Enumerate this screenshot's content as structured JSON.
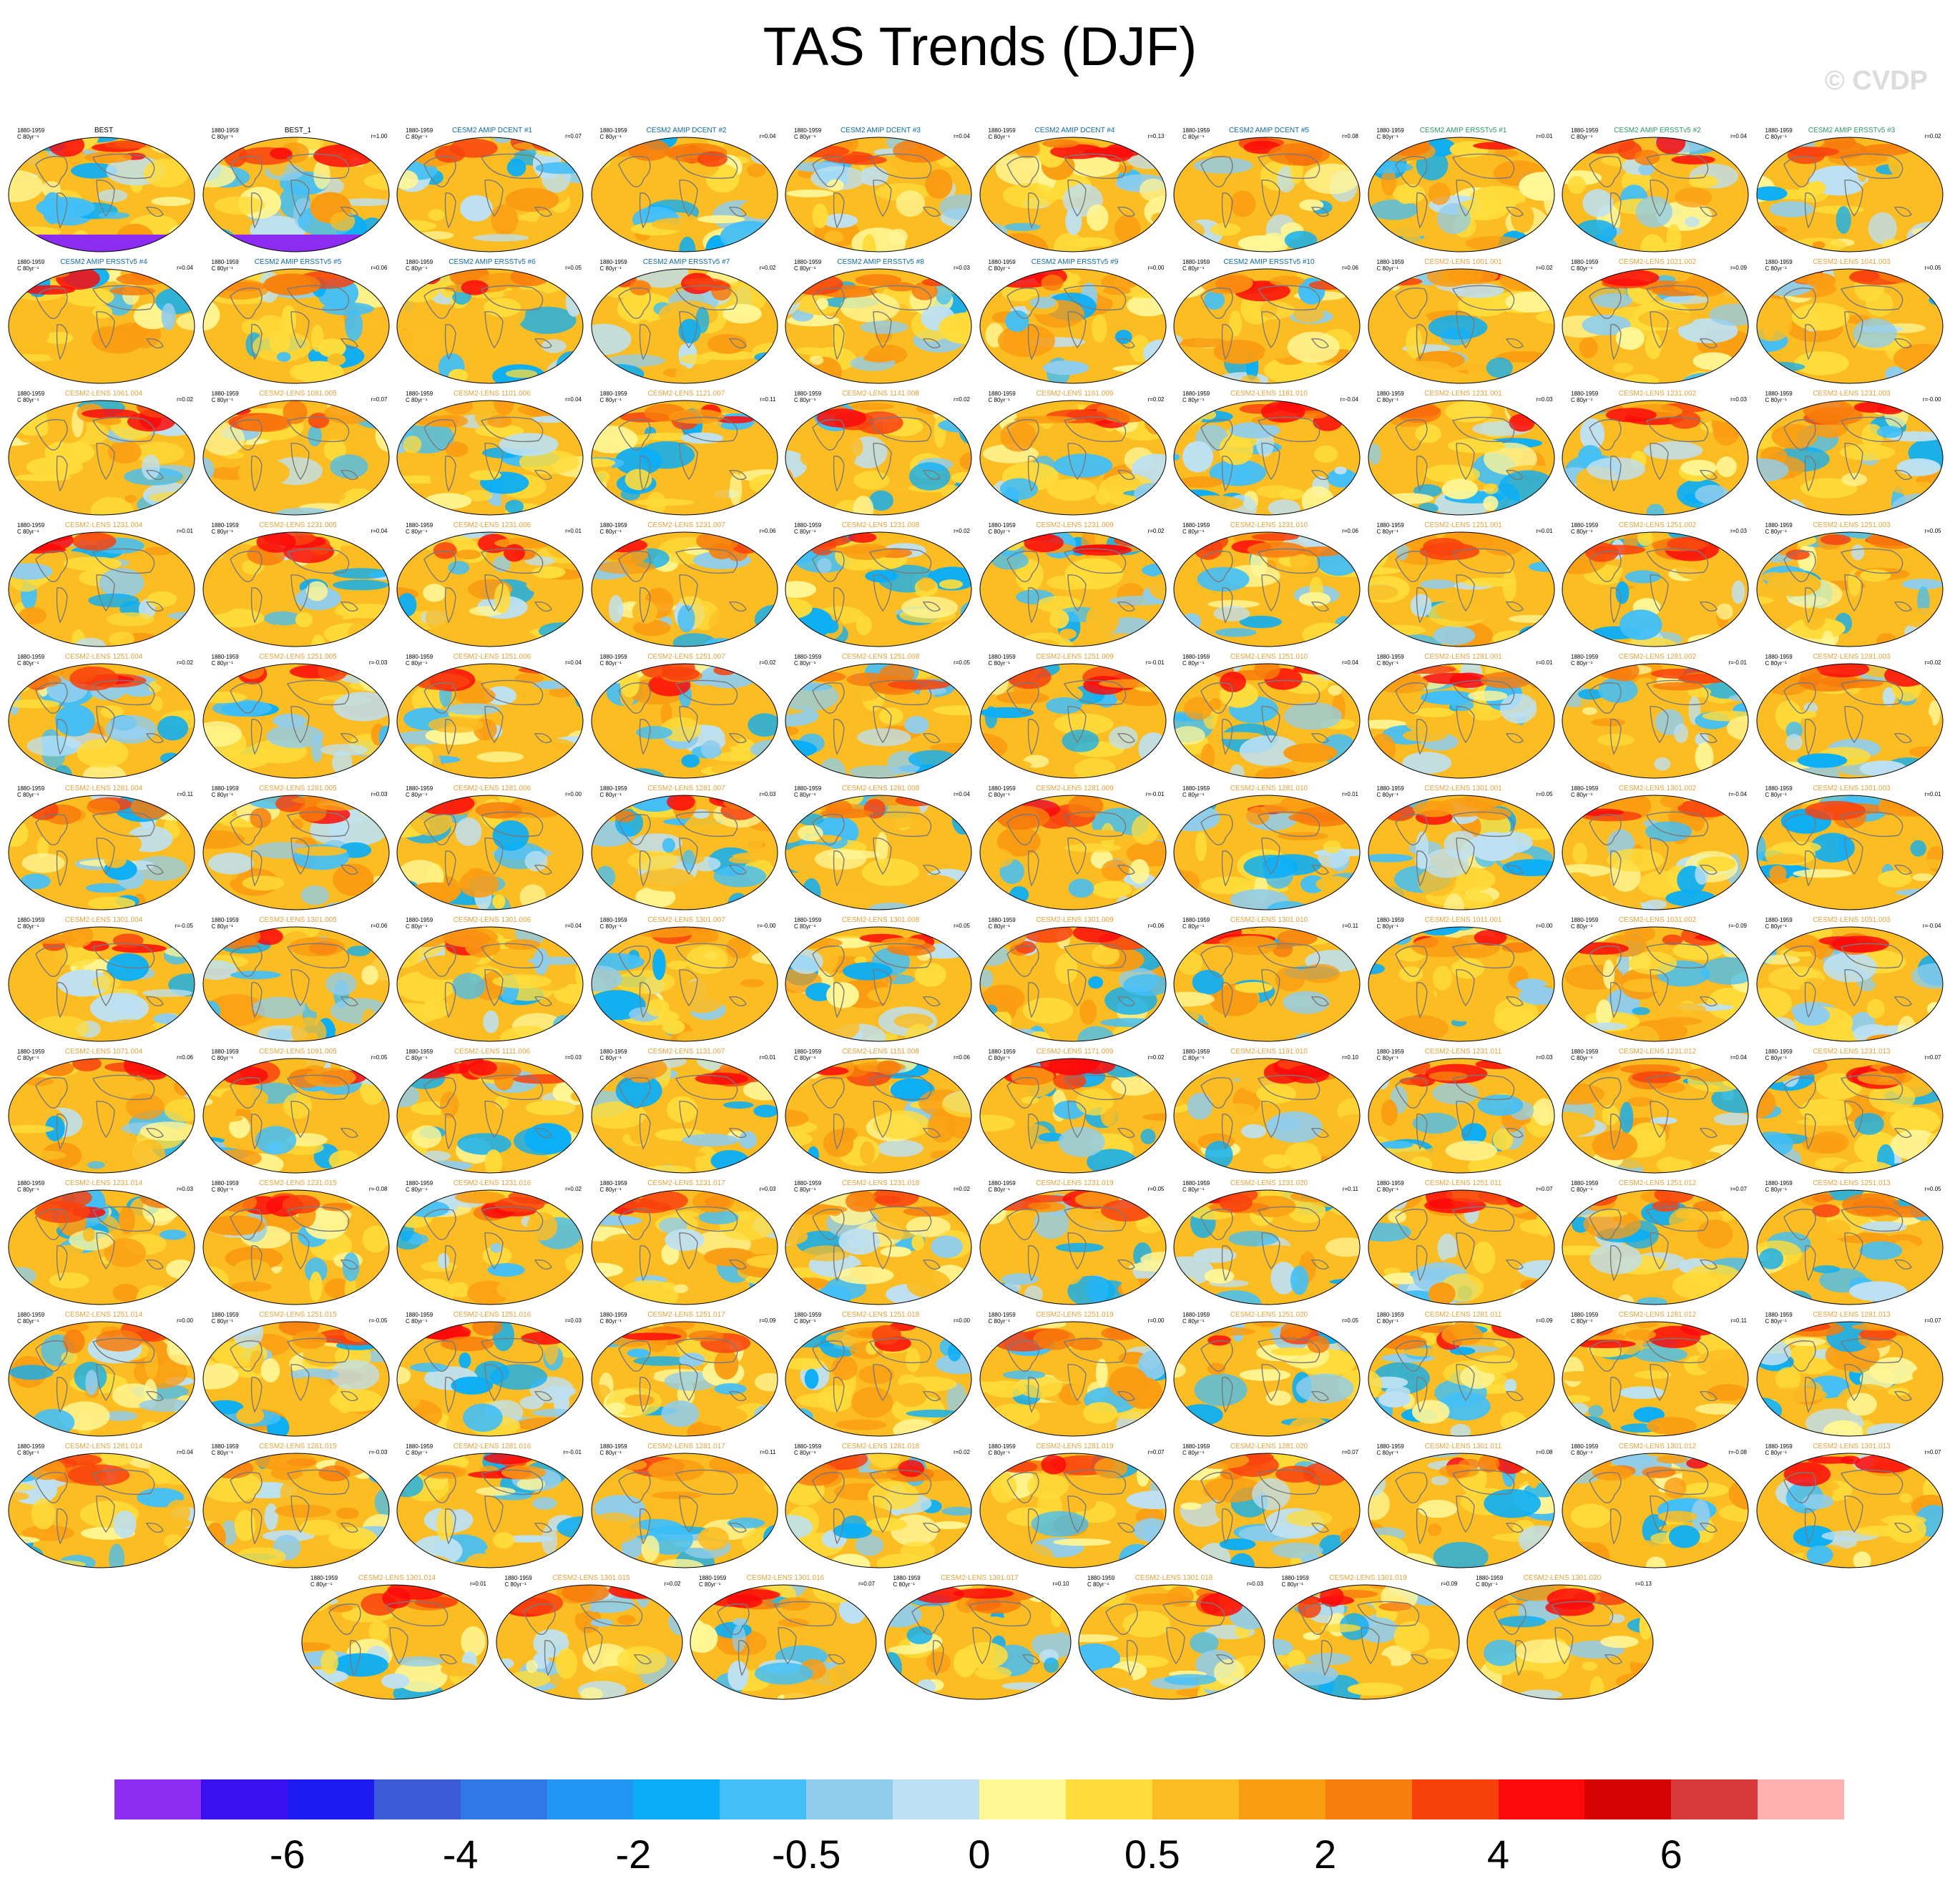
{
  "title": "TAS Trends (DJF)",
  "credit": "© CVDP",
  "chart_data": {
    "type": "heatmap",
    "title": "TAS Trends (DJF)",
    "period": "1880-1959",
    "units": "C 80yr⁻¹",
    "panels": [
      {
        "label": "BEST",
        "r": "",
        "group": "obs"
      },
      {
        "label": "BEST_1",
        "r": "r=1.00",
        "group": "obs"
      },
      {
        "label": "CESM2 AMIP DCENT #1",
        "r": "r=0.07",
        "group": "dcent"
      },
      {
        "label": "CESM2 AMIP DCENT #2",
        "r": "r=0.04",
        "group": "dcent"
      },
      {
        "label": "CESM2 AMIP DCENT #3",
        "r": "r=0.04",
        "group": "dcent"
      },
      {
        "label": "CESM2 AMIP DCENT #4",
        "r": "r=0.13",
        "group": "dcent"
      },
      {
        "label": "CESM2 AMIP DCENT #5",
        "r": "r=0.08",
        "group": "dcent"
      },
      {
        "label": "CESM2 AMIP ERSSTv5 #1",
        "r": "r=0.01",
        "group": "ersst"
      },
      {
        "label": "CESM2 AMIP ERSSTv5 #2",
        "r": "r=0.04",
        "group": "ersst"
      },
      {
        "label": "CESM2 AMIP ERSSTv5 #3",
        "r": "r=0.02",
        "group": "ersst"
      },
      {
        "label": "CESM2 AMIP ERSSTv5 #4",
        "r": "r=0.04",
        "group": "ersst2"
      },
      {
        "label": "CESM2 AMIP ERSSTv5 #5",
        "r": "r=0.06",
        "group": "ersst2"
      },
      {
        "label": "CESM2 AMIP ERSSTv5 #6",
        "r": "r=0.05",
        "group": "ersst2"
      },
      {
        "label": "CESM2 AMIP ERSSTv5 #7",
        "r": "r=0.02",
        "group": "ersst2"
      },
      {
        "label": "CESM2 AMIP ERSSTv5 #8",
        "r": "r=0.03",
        "group": "ersst2"
      },
      {
        "label": "CESM2 AMIP ERSSTv5 #9",
        "r": "r=0.00",
        "group": "ersst2"
      },
      {
        "label": "CESM2 AMIP ERSSTv5 #10",
        "r": "r=0.06",
        "group": "ersst2"
      },
      {
        "label": "CESM2-LENS 1001.001",
        "r": "r=0.02",
        "group": "lens"
      },
      {
        "label": "CESM2-LENS 1021.002",
        "r": "r=0.09",
        "group": "lens"
      },
      {
        "label": "CESM2-LENS 1041.003",
        "r": "r=0.05",
        "group": "lens"
      },
      {
        "label": "CESM2-LENS 1061.004",
        "r": "r=0.02",
        "group": "lens"
      },
      {
        "label": "CESM2-LENS 1081.005",
        "r": "r=0.07",
        "group": "lens"
      },
      {
        "label": "CESM2-LENS 1101.006",
        "r": "r=0.04",
        "group": "lens"
      },
      {
        "label": "CESM2-LENS 1121.007",
        "r": "r=0.11",
        "group": "lens"
      },
      {
        "label": "CESM2-LENS 1141.008",
        "r": "r=0.02",
        "group": "lens"
      },
      {
        "label": "CESM2-LENS 1161.009",
        "r": "r=0.02",
        "group": "lens"
      },
      {
        "label": "CESM2-LENS 1181.010",
        "r": "r=-0.04",
        "group": "lens"
      },
      {
        "label": "CESM2-LENS 1231.001",
        "r": "r=0.03",
        "group": "lens"
      },
      {
        "label": "CESM2-LENS 1231.002",
        "r": "r=0.03",
        "group": "lens"
      },
      {
        "label": "CESM2-LENS 1231.003",
        "r": "r=-0.00",
        "group": "lens"
      },
      {
        "label": "CESM2-LENS 1231.004",
        "r": "r=0.01",
        "group": "lens"
      },
      {
        "label": "CESM2-LENS 1231.005",
        "r": "r=0.04",
        "group": "lens"
      },
      {
        "label": "CESM2-LENS 1231.006",
        "r": "r=0.01",
        "group": "lens"
      },
      {
        "label": "CESM2-LENS 1231.007",
        "r": "r=0.06",
        "group": "lens"
      },
      {
        "label": "CESM2-LENS 1231.008",
        "r": "r=0.02",
        "group": "lens"
      },
      {
        "label": "CESM2-LENS 1231.009",
        "r": "r=0.02",
        "group": "lens"
      },
      {
        "label": "CESM2-LENS 1231.010",
        "r": "r=0.06",
        "group": "lens"
      },
      {
        "label": "CESM2-LENS 1251.001",
        "r": "r=0.01",
        "group": "lens"
      },
      {
        "label": "CESM2-LENS 1251.002",
        "r": "r=0.03",
        "group": "lens"
      },
      {
        "label": "CESM2-LENS 1251.003",
        "r": "r=0.05",
        "group": "lens"
      },
      {
        "label": "CESM2-LENS 1251.004",
        "r": "r=0.02",
        "group": "lens"
      },
      {
        "label": "CESM2-LENS 1251.005",
        "r": "r=-0.03",
        "group": "lens"
      },
      {
        "label": "CESM2-LENS 1251.006",
        "r": "r=0.04",
        "group": "lens"
      },
      {
        "label": "CESM2-LENS 1251.007",
        "r": "r=0.02",
        "group": "lens"
      },
      {
        "label": "CESM2-LENS 1251.008",
        "r": "r=0.05",
        "group": "lens"
      },
      {
        "label": "CESM2-LENS 1251.009",
        "r": "r=-0.01",
        "group": "lens"
      },
      {
        "label": "CESM2-LENS 1251.010",
        "r": "r=0.04",
        "group": "lens"
      },
      {
        "label": "CESM2-LENS 1281.001",
        "r": "r=0.01",
        "group": "lens"
      },
      {
        "label": "CESM2-LENS 1281.002",
        "r": "r=-0.01",
        "group": "lens"
      },
      {
        "label": "CESM2-LENS 1281.003",
        "r": "r=0.02",
        "group": "lens"
      },
      {
        "label": "CESM2-LENS 1281.004",
        "r": "r=0.11",
        "group": "lens"
      },
      {
        "label": "CESM2-LENS 1281.005",
        "r": "r=0.03",
        "group": "lens"
      },
      {
        "label": "CESM2-LENS 1281.006",
        "r": "r=0.00",
        "group": "lens"
      },
      {
        "label": "CESM2-LENS 1281.007",
        "r": "r=0.03",
        "group": "lens"
      },
      {
        "label": "CESM2-LENS 1281.008",
        "r": "r=0.04",
        "group": "lens"
      },
      {
        "label": "CESM2-LENS 1281.009",
        "r": "r=-0.01",
        "group": "lens"
      },
      {
        "label": "CESM2-LENS 1281.010",
        "r": "r=0.01",
        "group": "lens"
      },
      {
        "label": "CESM2-LENS 1301.001",
        "r": "r=0.05",
        "group": "lens"
      },
      {
        "label": "CESM2-LENS 1301.002",
        "r": "r=-0.04",
        "group": "lens"
      },
      {
        "label": "CESM2-LENS 1301.003",
        "r": "r=0.01",
        "group": "lens"
      },
      {
        "label": "CESM2-LENS 1301.004",
        "r": "r=-0.05",
        "group": "lens"
      },
      {
        "label": "CESM2-LENS 1301.005",
        "r": "r=0.06",
        "group": "lens"
      },
      {
        "label": "CESM2-LENS 1301.006",
        "r": "r=0.04",
        "group": "lens"
      },
      {
        "label": "CESM2-LENS 1301.007",
        "r": "r=-0.00",
        "group": "lens"
      },
      {
        "label": "CESM2-LENS 1301.008",
        "r": "r=0.05",
        "group": "lens"
      },
      {
        "label": "CESM2-LENS 1301.009",
        "r": "r=0.06",
        "group": "lens"
      },
      {
        "label": "CESM2-LENS 1301.010",
        "r": "r=0.11",
        "group": "lens"
      },
      {
        "label": "CESM2-LENS 1011.001",
        "r": "r=0.00",
        "group": "lens"
      },
      {
        "label": "CESM2-LENS 1031.002",
        "r": "r=-0.09",
        "group": "lens"
      },
      {
        "label": "CESM2-LENS 1051.003",
        "r": "r=-0.04",
        "group": "lens"
      },
      {
        "label": "CESM2-LENS 1071.004",
        "r": "r=0.06",
        "group": "lens"
      },
      {
        "label": "CESM2-LENS 1091.005",
        "r": "r=0.05",
        "group": "lens"
      },
      {
        "label": "CESM2-LENS 1111.006",
        "r": "r=0.03",
        "group": "lens"
      },
      {
        "label": "CESM2-LENS 1131.007",
        "r": "r=0.01",
        "group": "lens"
      },
      {
        "label": "CESM2-LENS 1151.008",
        "r": "r=0.06",
        "group": "lens"
      },
      {
        "label": "CESM2-LENS 1171.009",
        "r": "r=0.02",
        "group": "lens"
      },
      {
        "label": "CESM2-LENS 1191.010",
        "r": "r=0.10",
        "group": "lens"
      },
      {
        "label": "CESM2-LENS 1231.011",
        "r": "r=0.03",
        "group": "lens"
      },
      {
        "label": "CESM2-LENS 1231.012",
        "r": "r=0.04",
        "group": "lens"
      },
      {
        "label": "CESM2-LENS 1231.013",
        "r": "r=0.07",
        "group": "lens"
      },
      {
        "label": "CESM2-LENS 1231.014",
        "r": "r=0.03",
        "group": "lens"
      },
      {
        "label": "CESM2-LENS 1231.015",
        "r": "r=-0.08",
        "group": "lens"
      },
      {
        "label": "CESM2-LENS 1231.016",
        "r": "r=0.02",
        "group": "lens"
      },
      {
        "label": "CESM2-LENS 1231.017",
        "r": "r=0.03",
        "group": "lens"
      },
      {
        "label": "CESM2-LENS 1231.018",
        "r": "r=0.02",
        "group": "lens"
      },
      {
        "label": "CESM2-LENS 1231.019",
        "r": "r=0.05",
        "group": "lens"
      },
      {
        "label": "CESM2-LENS 1231.020",
        "r": "r=0.11",
        "group": "lens"
      },
      {
        "label": "CESM2-LENS 1251.011",
        "r": "r=0.07",
        "group": "lens"
      },
      {
        "label": "CESM2-LENS 1251.012",
        "r": "r=0.07",
        "group": "lens"
      },
      {
        "label": "CESM2-LENS 1251.013",
        "r": "r=0.05",
        "group": "lens"
      },
      {
        "label": "CESM2-LENS 1251.014",
        "r": "r=0.00",
        "group": "lens"
      },
      {
        "label": "CESM2-LENS 1251.015",
        "r": "r=-0.05",
        "group": "lens"
      },
      {
        "label": "CESM2-LENS 1251.016",
        "r": "r=0.03",
        "group": "lens"
      },
      {
        "label": "CESM2-LENS 1251.017",
        "r": "r=0.09",
        "group": "lens"
      },
      {
        "label": "CESM2-LENS 1251.018",
        "r": "r=0.00",
        "group": "lens"
      },
      {
        "label": "CESM2-LENS 1251.019",
        "r": "r=0.00",
        "group": "lens"
      },
      {
        "label": "CESM2-LENS 1251.020",
        "r": "r=0.05",
        "group": "lens"
      },
      {
        "label": "CESM2-LENS 1281.011",
        "r": "r=0.09",
        "group": "lens"
      },
      {
        "label": "CESM2-LENS 1281.012",
        "r": "r=0.11",
        "group": "lens"
      },
      {
        "label": "CESM2-LENS 1281.013",
        "r": "r=0.07",
        "group": "lens"
      },
      {
        "label": "CESM2-LENS 1281.014",
        "r": "r=0.04",
        "group": "lens"
      },
      {
        "label": "CESM2-LENS 1281.015",
        "r": "r=-0.03",
        "group": "lens"
      },
      {
        "label": "CESM2-LENS 1281.016",
        "r": "r=-0.01",
        "group": "lens"
      },
      {
        "label": "CESM2-LENS 1281.017",
        "r": "r=0.11",
        "group": "lens"
      },
      {
        "label": "CESM2-LENS 1281.018",
        "r": "r=0.02",
        "group": "lens"
      },
      {
        "label": "CESM2-LENS 1281.019",
        "r": "r=0.07",
        "group": "lens"
      },
      {
        "label": "CESM2-LENS 1281.020",
        "r": "r=0.07",
        "group": "lens"
      },
      {
        "label": "CESM2-LENS 1301.011",
        "r": "r=0.08",
        "group": "lens"
      },
      {
        "label": "CESM2-LENS 1301.012",
        "r": "r=-0.08",
        "group": "lens"
      },
      {
        "label": "CESM2-LENS 1301.013",
        "r": "r=0.07",
        "group": "lens"
      },
      {
        "label": "CESM2-LENS 1301.014",
        "r": "r=0.01",
        "group": "lens"
      },
      {
        "label": "CESM2-LENS 1301.015",
        "r": "r=0.02",
        "group": "lens"
      },
      {
        "label": "CESM2-LENS 1301.016",
        "r": "r=0.07",
        "group": "lens"
      },
      {
        "label": "CESM2-LENS 1301.017",
        "r": "r=0.10",
        "group": "lens"
      },
      {
        "label": "CESM2-LENS 1301.018",
        "r": "r=0.03",
        "group": "lens"
      },
      {
        "label": "CESM2-LENS 1301.019",
        "r": "r=0.09",
        "group": "lens"
      },
      {
        "label": "CESM2-LENS 1301.020",
        "r": "r=0.13",
        "group": "lens"
      }
    ],
    "label_colors": {
      "obs": "#000000",
      "dcent": "#0e6aa8",
      "ersst": "#2e9a6a",
      "ersst2": "#0e6aa8",
      "lens": "#e8a23a"
    },
    "colorbar": {
      "colors": [
        "#8c2cf0",
        "#3a12f2",
        "#1c1cf0",
        "#3a5ad8",
        "#2f78ea",
        "#2196f3",
        "#0aaef7",
        "#43bff7",
        "#90cdec",
        "#bde1f3",
        "#fff695",
        "#ffdc3a",
        "#fbbd22",
        "#fa9c12",
        "#f77d0c",
        "#f8420e",
        "#fb0a0a",
        "#d50303",
        "#d63a3a",
        "#fdb2b0"
      ],
      "tick_labels": [
        "-6",
        "-4",
        "-2",
        "-0.5",
        "0",
        "0.5",
        "2",
        "4",
        "6"
      ],
      "tick_boundaries": [
        2,
        4,
        6,
        8,
        10,
        12,
        14,
        16,
        18
      ]
    }
  }
}
